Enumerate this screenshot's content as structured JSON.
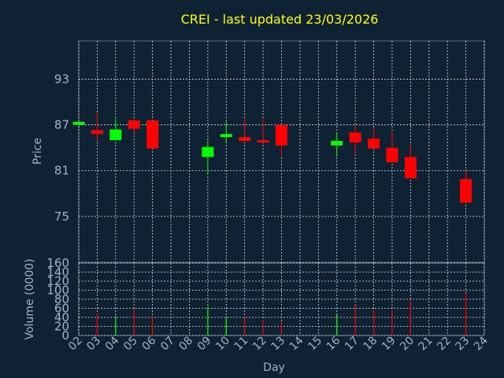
{
  "chart_data": {
    "type": "candlestick",
    "title": "CREI - last updated 23/03/2026",
    "xlabel": "Day",
    "x_ticks": [
      "02",
      "03",
      "04",
      "05",
      "06",
      "07",
      "08",
      "09",
      "10",
      "11",
      "12",
      "13",
      "14",
      "15",
      "16",
      "17",
      "18",
      "19",
      "20",
      "21",
      "22",
      "23",
      "24"
    ],
    "price": {
      "ylabel": "Price",
      "ylim": [
        69,
        98
      ],
      "ticks": [
        75,
        81,
        87,
        93
      ],
      "candles": [
        {
          "day": "02",
          "open": 87.0,
          "close": 87.4,
          "high": 87.4,
          "low": 87.0
        },
        {
          "day": "03",
          "open": 86.3,
          "close": 85.8,
          "high": 88.6,
          "low": 84.9
        },
        {
          "day": "04",
          "open": 85.0,
          "close": 86.4,
          "high": 87.8,
          "low": 85.0
        },
        {
          "day": "05",
          "open": 87.6,
          "close": 86.5,
          "high": 87.6,
          "low": 86.0
        },
        {
          "day": "06",
          "open": 87.6,
          "close": 83.9,
          "high": 87.6,
          "low": 83.9
        },
        {
          "day": "09",
          "open": 82.8,
          "close": 84.1,
          "high": 84.9,
          "low": 80.7
        },
        {
          "day": "10",
          "open": 85.4,
          "close": 85.8,
          "high": 87.4,
          "low": 84.6
        },
        {
          "day": "11",
          "open": 85.4,
          "close": 84.9,
          "high": 87.8,
          "low": 84.9
        },
        {
          "day": "12",
          "open": 85.0,
          "close": 84.7,
          "high": 87.8,
          "low": 84.7
        },
        {
          "day": "13",
          "open": 87.0,
          "close": 84.3,
          "high": 87.0,
          "low": 82.8
        },
        {
          "day": "16",
          "open": 84.3,
          "close": 84.9,
          "high": 86.0,
          "low": 82.8
        },
        {
          "day": "17",
          "open": 86.0,
          "close": 84.7,
          "high": 87.0,
          "low": 83.2
        },
        {
          "day": "18",
          "open": 85.2,
          "close": 83.9,
          "high": 86.6,
          "low": 83.9
        },
        {
          "day": "19",
          "open": 84.0,
          "close": 82.1,
          "high": 86.2,
          "low": 82.1
        },
        {
          "day": "20",
          "open": 82.8,
          "close": 80.0,
          "high": 84.5,
          "low": 80.0
        },
        {
          "day": "23",
          "open": 79.9,
          "close": 76.8,
          "high": 81.0,
          "low": 76.8
        }
      ]
    },
    "volume": {
      "ylabel": "Volume (0000)",
      "ylim": [
        0,
        160
      ],
      "ticks": [
        0,
        20,
        40,
        60,
        80,
        100,
        120,
        140,
        160
      ],
      "bars": [
        {
          "day": "03",
          "value": 48,
          "direction": "down"
        },
        {
          "day": "04",
          "value": 43,
          "direction": "up"
        },
        {
          "day": "05",
          "value": 58,
          "direction": "down"
        },
        {
          "day": "06",
          "value": 40,
          "direction": "down"
        },
        {
          "day": "09",
          "value": 63,
          "direction": "up"
        },
        {
          "day": "10",
          "value": 38,
          "direction": "up"
        },
        {
          "day": "11",
          "value": 42,
          "direction": "down"
        },
        {
          "day": "12",
          "value": 35,
          "direction": "down"
        },
        {
          "day": "13",
          "value": 30,
          "direction": "down"
        },
        {
          "day": "16",
          "value": 48,
          "direction": "up"
        },
        {
          "day": "17",
          "value": 67,
          "direction": "down"
        },
        {
          "day": "18",
          "value": 57,
          "direction": "down"
        },
        {
          "day": "19",
          "value": 56,
          "direction": "down"
        },
        {
          "day": "20",
          "value": 78,
          "direction": "down"
        },
        {
          "day": "23",
          "value": 95,
          "direction": "down"
        }
      ]
    },
    "colors": {
      "background": "#0f2233",
      "up": "#00ff00",
      "down": "#ff0000",
      "grid": "#ffffff",
      "text": "#9fb4c8",
      "title": "#ffff00"
    },
    "grid": true
  }
}
